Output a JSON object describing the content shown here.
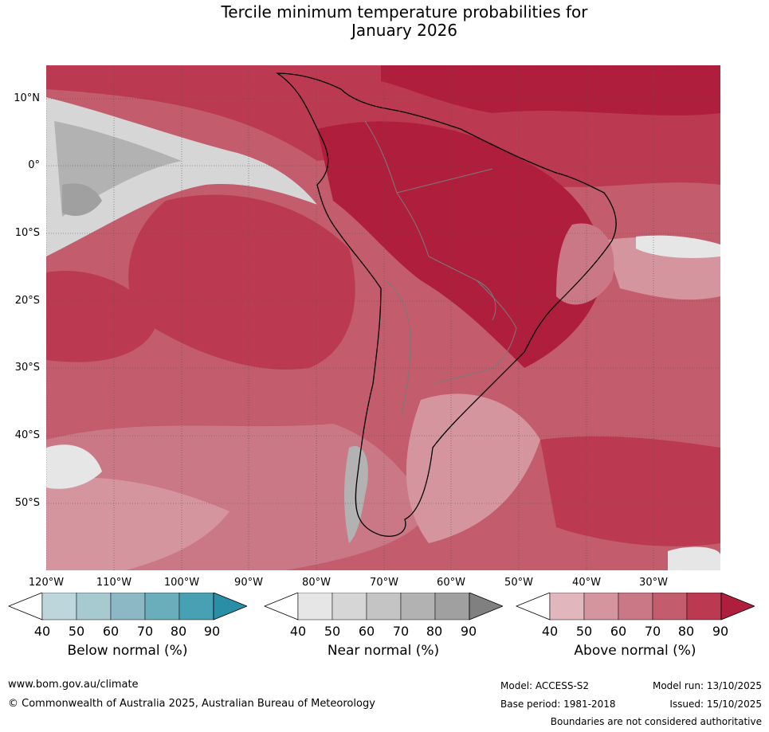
{
  "title": {
    "line1": "Tercile minimum temperature probabilities for",
    "line2": "January 2026"
  },
  "map": {
    "lat_labels": [
      "10°N",
      "0°",
      "10°S",
      "20°S",
      "30°S",
      "40°S",
      "50°S"
    ],
    "lon_labels": [
      "120°W",
      "110°W",
      "100°W",
      "90°W",
      "80°W",
      "70°W",
      "60°W",
      "50°W",
      "40°W",
      "30°W"
    ]
  },
  "legend": {
    "below": {
      "label": "Below normal (%)",
      "ticks": [
        "40",
        "50",
        "60",
        "70",
        "80",
        "90"
      ],
      "colors": [
        "#ffffff",
        "#bcd6dc",
        "#a7c9d0",
        "#8bb8c4",
        "#6aaebc",
        "#47a1b2",
        "#2a8ea6"
      ]
    },
    "near": {
      "label": "Near normal (%)",
      "ticks": [
        "40",
        "50",
        "60",
        "70",
        "80",
        "90"
      ],
      "colors": [
        "#ffffff",
        "#e6e6e6",
        "#d6d6d6",
        "#c4c4c4",
        "#b2b2b2",
        "#a0a0a0",
        "#808080"
      ]
    },
    "above": {
      "label": "Above normal (%)",
      "ticks": [
        "40",
        "50",
        "60",
        "70",
        "80",
        "90"
      ],
      "colors": [
        "#ffffff",
        "#e1b6bd",
        "#d5959f",
        "#cb7886",
        "#c35c6c",
        "#bb3a51",
        "#b01e3e"
      ]
    }
  },
  "footer": {
    "url": "www.bom.gov.au/climate",
    "copyright": "© Commonwealth of Australia 2025, Australian Bureau of Meteorology",
    "model": "Model: ACCESS-S2",
    "model_run": "Model run: 13/10/2025",
    "base_period": "Base period: 1981-2018",
    "issued": "Issued: 15/10/2025",
    "disclaimer": "Boundaries are not considered authoritative"
  }
}
